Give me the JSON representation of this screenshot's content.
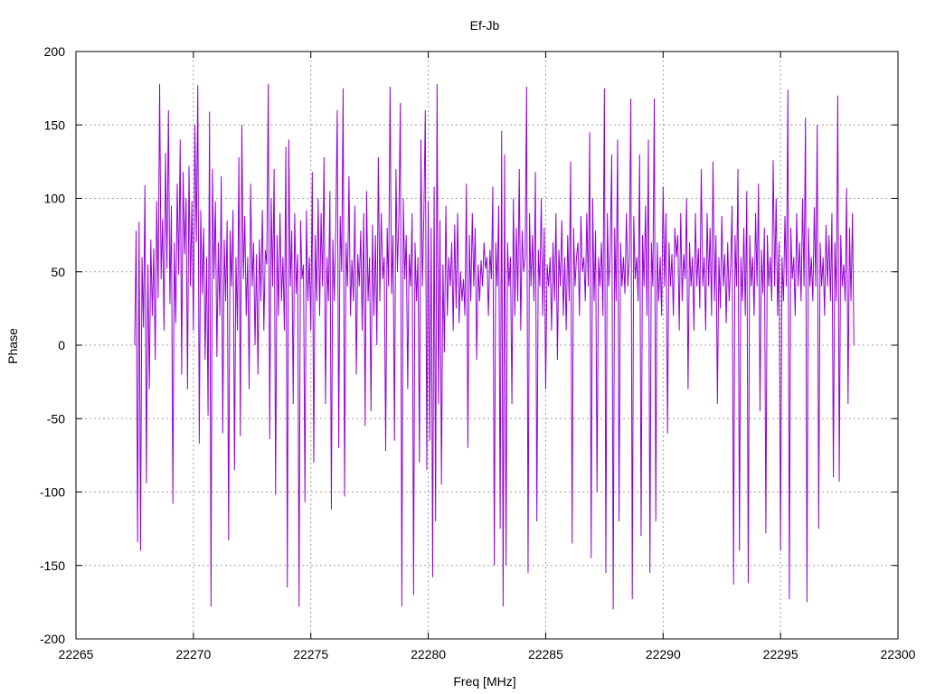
{
  "chart_data": {
    "type": "line",
    "title": "Ef-Jb",
    "xlabel": "Freq [MHz]",
    "ylabel": "Phase",
    "xlim": [
      22265,
      22300
    ],
    "ylim": [
      -200,
      200
    ],
    "x_ticks": [
      22265,
      22270,
      22275,
      22280,
      22285,
      22290,
      22295,
      22300
    ],
    "y_ticks": [
      -200,
      -150,
      -100,
      -50,
      0,
      50,
      100,
      150,
      200
    ],
    "grid": true,
    "legend": "none",
    "series_color": "#9400d3",
    "series": [
      {
        "x_start": 22267.5,
        "x_step": 0.0625,
        "values": [
          0,
          78,
          -134,
          84,
          -140,
          60,
          12,
          109,
          -94,
          55,
          -30,
          72,
          20,
          66,
          -10,
          98,
          32,
          178,
          45,
          86,
          10,
          131,
          52,
          160,
          28,
          95,
          -108,
          70,
          15,
          110,
          48,
          140,
          -20,
          118,
          62,
          100,
          -30,
          122,
          40,
          98,
          10,
          150,
          70,
          177,
          -67,
          92,
          35,
          80,
          -10,
          60,
          -48,
          159,
          -178,
          120,
          45,
          98,
          -8,
          70,
          20,
          115,
          -60,
          72,
          30,
          85,
          -133,
          78,
          40,
          92,
          -85,
          60,
          10,
          128,
          -62,
          150,
          45,
          88,
          20,
          60,
          -30,
          110,
          40,
          70,
          0,
          62,
          -20,
          72,
          30,
          92,
          10,
          65,
          55,
          178,
          -64,
          100,
          40,
          120,
          -102,
          75,
          20,
          90,
          30,
          60,
          10,
          135,
          -165,
          140,
          40,
          78,
          -40,
          90,
          35,
          62,
          -178,
          85,
          45,
          55,
          -107,
          92,
          30,
          60,
          10,
          118,
          -80,
          75,
          30,
          100,
          20,
          90,
          40,
          128,
          -40,
          60,
          30,
          105,
          -112,
          72,
          30,
          80,
          160,
          -70,
          88,
          50,
          175,
          -103,
          70,
          40,
          115,
          20,
          58,
          30,
          95,
          -20,
          62,
          40,
          78,
          10,
          90,
          -55,
          105,
          30,
          60,
          -45,
          82,
          20,
          75,
          0,
          128,
          30,
          90,
          45,
          60,
          -72,
          80,
          40,
          176,
          35,
          75,
          -65,
          120,
          50,
          88,
          165,
          -178,
          100,
          45,
          75,
          -30,
          62,
          40,
          90,
          -170,
          70,
          30,
          60,
          -80,
          140,
          40,
          88,
          160,
          -85,
          98,
          -65,
          80,
          -158,
          108,
          -120,
          178,
          -40,
          85,
          -95,
          55,
          -5,
          95,
          20,
          60,
          40,
          70,
          10,
          82,
          25,
          90,
          15,
          50,
          30,
          45,
          20,
          110,
          -70,
          75,
          30,
          90,
          40,
          80,
          -10,
          55,
          30,
          58,
          40,
          70,
          52,
          60,
          20,
          65,
          45,
          108,
          -150,
          70,
          40,
          95,
          -125,
          146,
          -178,
          130,
          -150,
          70,
          40,
          60,
          -40,
          100,
          20,
          80,
          30,
          120,
          10,
          78,
          50,
          60,
          176,
          -155,
          90,
          40,
          75,
          30,
          118,
          -120,
          65,
          40,
          100,
          20,
          80,
          -30,
          55,
          40,
          60,
          10,
          70,
          30,
          90,
          -10,
          65,
          40,
          85,
          20,
          60,
          10,
          75,
          30,
          125,
          -135,
          80,
          40,
          60,
          70,
          20,
          88,
          50,
          60,
          30,
          90,
          40,
          145,
          -145,
          100,
          30,
          78,
          -100,
          60,
          40,
          70,
          20,
          175,
          -155,
          90,
          40,
          65,
          130,
          -180,
          80,
          30,
          140,
          -120,
          70,
          40,
          60,
          35,
          90,
          40,
          60,
          168,
          -173,
          88,
          45,
          60,
          30,
          130,
          -130,
          75,
          40,
          95,
          20,
          140,
          -155,
          70,
          40,
          168,
          -120,
          70,
          30,
          60,
          20,
          108,
          40,
          90,
          -60,
          70,
          40,
          62,
          20,
          80,
          60,
          75,
          10,
          90,
          30,
          62,
          45,
          100,
          -30,
          70,
          40,
          60,
          10,
          90,
          40,
          66,
          25,
          120,
          40,
          60,
          10,
          90,
          40,
          80,
          20,
          125,
          30,
          75,
          -40,
          60,
          25,
          88,
          40,
          62,
          15,
          70,
          30,
          55,
          95,
          -163,
          75,
          40,
          120,
          -140,
          60,
          30,
          80,
          20,
          105,
          -162,
          75,
          40,
          60,
          20,
          90,
          40,
          110,
          -45,
          65,
          35,
          80,
          -128,
          75,
          40,
          60,
          30,
          126,
          40,
          100,
          20,
          70,
          -140,
          60,
          30,
          88,
          40,
          174,
          -173,
          80,
          45,
          60,
          20,
          90,
          40,
          70,
          30,
          100,
          40,
          155,
          -175,
          80,
          40,
          60,
          30,
          94,
          40,
          150,
          -125,
          70,
          40,
          60,
          20,
          82,
          40,
          75,
          30,
          90,
          -90,
          70,
          30,
          170,
          -93,
          75,
          40,
          55,
          30,
          107,
          -40,
          80,
          30,
          90,
          0
        ]
      }
    ]
  }
}
